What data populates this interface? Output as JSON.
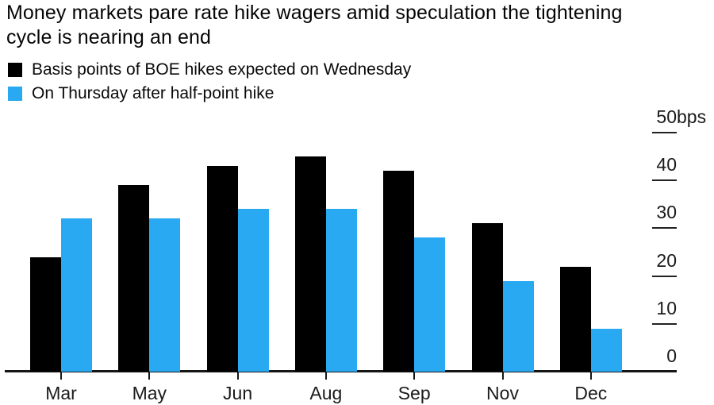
{
  "title": "Money markets pare rate hike wagers amid speculation the tightening\ncycle is nearing an end",
  "chart_data": {
    "type": "bar",
    "title": "Money markets pare rate hike wagers amid speculation the tightening cycle is nearing an end",
    "unit": "bps",
    "categories": [
      "Mar",
      "May",
      "Jun",
      "Aug",
      "Sep",
      "Nov",
      "Dec"
    ],
    "series": [
      {
        "name": "Basis points of BOE hikes expected on Wednesday",
        "color": "#000000",
        "values": [
          24,
          39,
          43,
          45,
          42,
          31,
          22
        ]
      },
      {
        "name": "On Thursday after half-point hike",
        "color": "#29A9F2",
        "values": [
          32,
          32,
          34,
          34,
          28,
          19,
          9
        ]
      }
    ],
    "xlabel": "",
    "ylabel": "",
    "ylim": [
      0,
      50
    ],
    "yticks": [
      0,
      10,
      20,
      30,
      40,
      50
    ],
    "ytick_top_label": "50bps",
    "legend_position": "top-left",
    "grid": "right-side tick dashes only",
    "axis_side": "right"
  },
  "colors": {
    "background": "#ffffff",
    "series_black": "#000000",
    "series_blue": "#29A9F2",
    "axis": "#1a1a1a"
  }
}
